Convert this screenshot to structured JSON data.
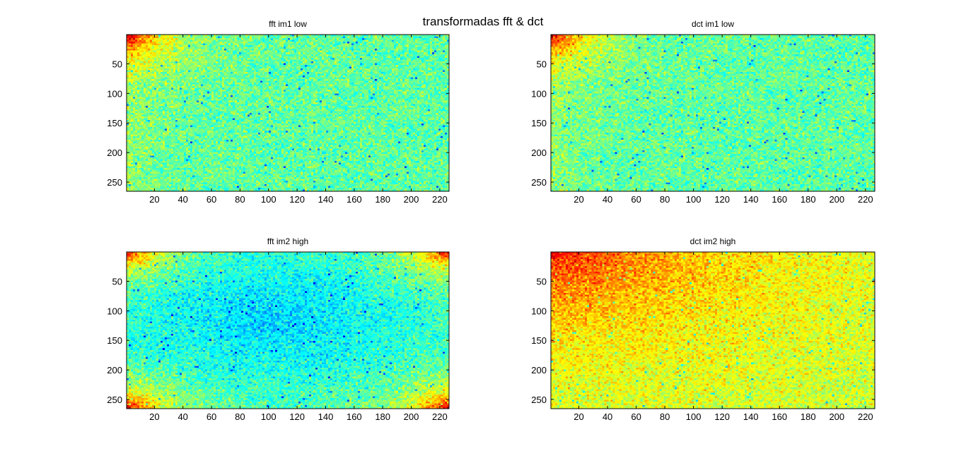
{
  "figure": {
    "suptitle": "transformadas fft & dct",
    "colormap": "jet"
  },
  "chart_data": [
    {
      "type": "heatmap",
      "title": "fft im1 low",
      "pattern": "corner-top-left",
      "xlim": [
        0.5,
        226.5
      ],
      "ylim": [
        0.5,
        265.5
      ],
      "y_reversed": true,
      "xticks": [
        20,
        40,
        60,
        80,
        100,
        120,
        140,
        160,
        180,
        200,
        220
      ],
      "yticks": [
        50,
        100,
        150,
        200,
        250
      ]
    },
    {
      "type": "heatmap",
      "title": "dct im1 low",
      "pattern": "corner-top-left",
      "xlim": [
        0.5,
        226.5
      ],
      "ylim": [
        0.5,
        265.5
      ],
      "y_reversed": true,
      "xticks": [
        20,
        40,
        60,
        80,
        100,
        120,
        140,
        160,
        180,
        200,
        220
      ],
      "yticks": [
        50,
        100,
        150,
        200,
        250
      ]
    },
    {
      "type": "heatmap",
      "title": "fft im2 high",
      "pattern": "four-corners-low-center",
      "xlim": [
        0.5,
        226.5
      ],
      "ylim": [
        0.5,
        265.5
      ],
      "y_reversed": true,
      "xticks": [
        20,
        40,
        60,
        80,
        100,
        120,
        140,
        160,
        180,
        200,
        220
      ],
      "yticks": [
        50,
        100,
        150,
        200,
        250
      ]
    },
    {
      "type": "heatmap",
      "title": "dct im2 high",
      "pattern": "diagonal-decay-from-top-left",
      "xlim": [
        0.5,
        226.5
      ],
      "ylim": [
        0.5,
        265.5
      ],
      "y_reversed": true,
      "xticks": [
        20,
        40,
        60,
        80,
        100,
        120,
        140,
        160,
        180,
        200,
        220
      ],
      "yticks": [
        50,
        100,
        150,
        200,
        250
      ]
    }
  ]
}
